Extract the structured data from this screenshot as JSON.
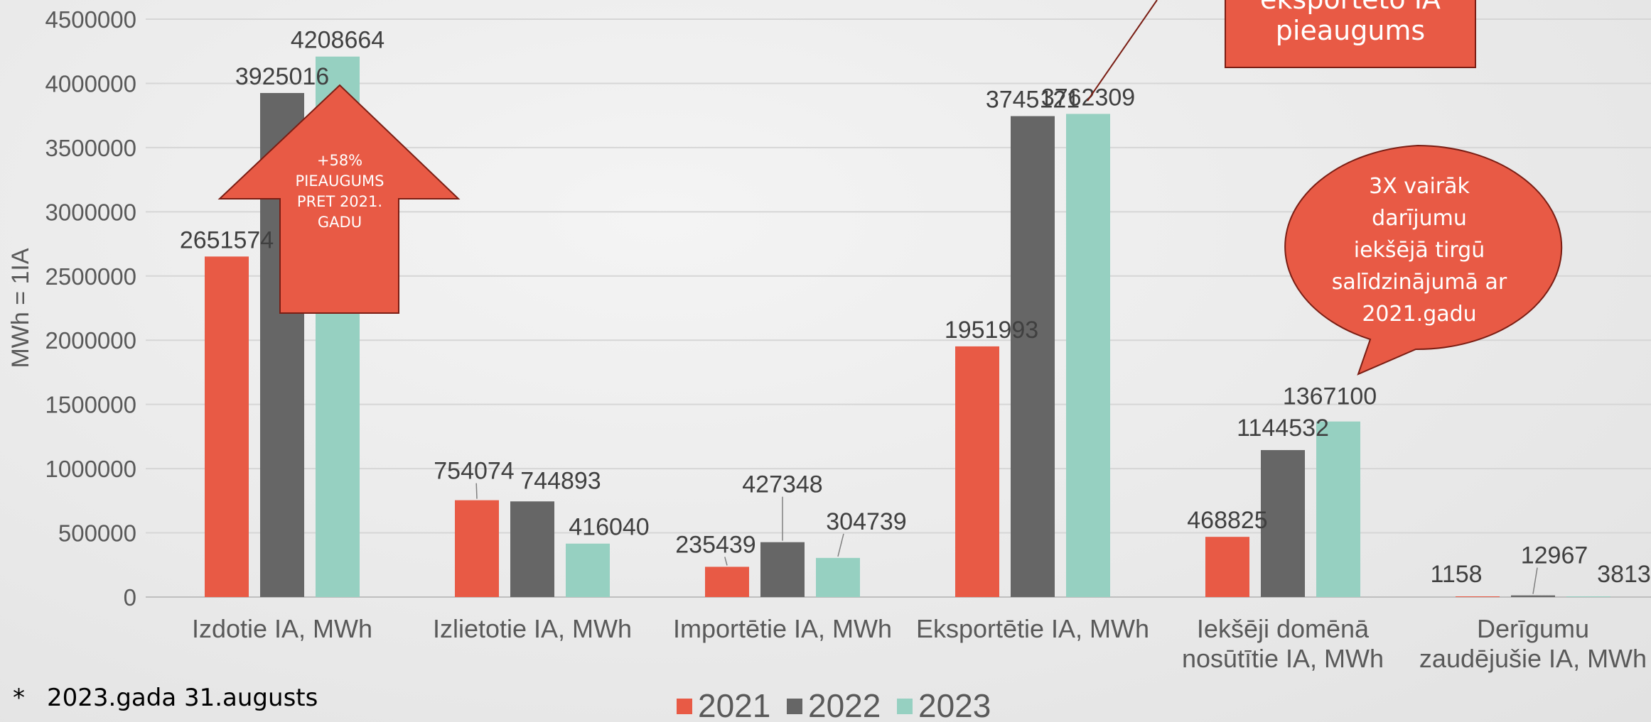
{
  "chart_data": {
    "type": "bar",
    "ylabel": "MWh = 1IA",
    "ylim": [
      0,
      4500000
    ],
    "yticks": [
      0,
      500000,
      1000000,
      1500000,
      2000000,
      2500000,
      3000000,
      3500000,
      4000000,
      4500000
    ],
    "ytick_labels": [
      "0",
      "500000",
      "1000000",
      "1500000",
      "2000000",
      "2500000",
      "3000000",
      "3500000",
      "4000000",
      "4500000"
    ],
    "grid": true,
    "legend_position": "bottom",
    "categories": [
      [
        "Izdotie IA, MWh"
      ],
      [
        "Izlietotie IA, MWh"
      ],
      [
        "Importētie IA, MWh"
      ],
      [
        "Eksportētie IA, MWh"
      ],
      [
        "Iekšēji domēnā",
        "nosūtītie IA, MWh"
      ],
      [
        "Derīgumu",
        "zaudējušie IA, MWh"
      ]
    ],
    "series": [
      {
        "name": "2021",
        "color": "#e85a45",
        "values": [
          2651574,
          754074,
          235439,
          1951993,
          468825,
          1158
        ]
      },
      {
        "name": "2022",
        "color": "#666666",
        "values": [
          3925016,
          744893,
          427348,
          3745121,
          1144532,
          12967
        ]
      },
      {
        "name": "2023",
        "color": "#96d0c1",
        "values": [
          4208664,
          416040,
          304739,
          3762309,
          1367100,
          3813
        ]
      }
    ]
  },
  "callouts": {
    "arrow_up": [
      "+58%",
      "PIEAUGUMS",
      "PRET 2021.",
      "GADU"
    ],
    "rect_top": [
      "eksportēto IA",
      "pieaugums"
    ],
    "bubble": [
      "3X vairāk",
      "darījumu",
      "iekšējā tirgū",
      "salīdzinājumā ar",
      "2021.gadu"
    ],
    "fill_color": "#e85a45"
  },
  "footnote": {
    "star": "*",
    "text": "2023.gada 31.augusts"
  }
}
